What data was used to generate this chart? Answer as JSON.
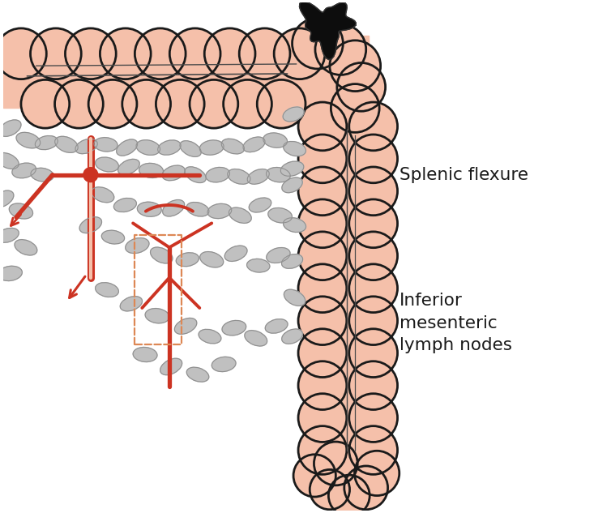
{
  "bg_color": "#ffffff",
  "colon_fill": "#f5c0aa",
  "colon_stroke": "#1a1a1a",
  "vessel_color": "#cc3322",
  "vessel_dashed_color": "#dd8855",
  "lymph_fill": "#c0c0c0",
  "lymph_stroke": "#909090",
  "tumor_color": "#0d0d0d",
  "text_color": "#1a1a1a",
  "label_splenic": "Splenic flexure",
  "label_inferior": "Inferior\nmesenteric\nlymph nodes",
  "figsize": [
    7.54,
    6.33
  ],
  "dpi": 100
}
